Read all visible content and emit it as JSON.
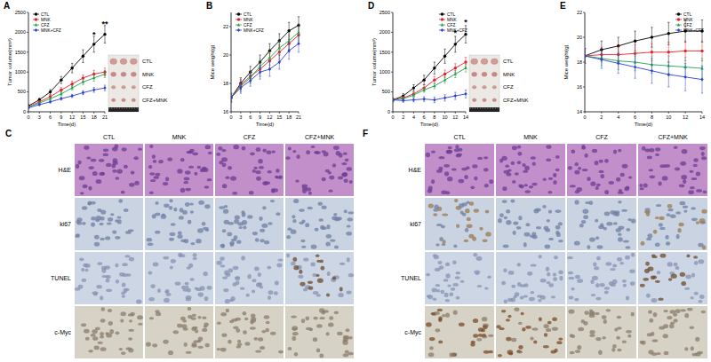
{
  "chart_data": [
    {
      "type": "line",
      "title": "A",
      "x": [
        0,
        3,
        6,
        9,
        12,
        15,
        18,
        21
      ],
      "xlim": [
        0,
        21
      ],
      "xticks": [
        0,
        3,
        6,
        9,
        12,
        15,
        18,
        21
      ],
      "ylim": [
        0,
        2500
      ],
      "yticks": [
        0,
        500,
        1000,
        1500,
        2000,
        2500
      ],
      "x_label": "Time(d)",
      "y_label": "Tumor volume(mm³)",
      "legend": "upper left",
      "series": [
        {
          "name": "CTL",
          "color": "#000000",
          "marker": "circle",
          "values": [
            150,
            300,
            500,
            800,
            1100,
            1400,
            1700,
            1950
          ],
          "errors": [
            20,
            40,
            60,
            90,
            120,
            160,
            200,
            220
          ]
        },
        {
          "name": "MNK",
          "color": "#e8202a",
          "marker": "circle",
          "values": [
            130,
            250,
            380,
            550,
            700,
            850,
            950,
            1000
          ],
          "errors": [
            15,
            30,
            40,
            60,
            70,
            80,
            90,
            100
          ]
        },
        {
          "name": "CFZ",
          "color": "#1fa34a",
          "marker": "triangle",
          "values": [
            120,
            220,
            330,
            450,
            600,
            750,
            850,
            950
          ],
          "errors": [
            15,
            25,
            35,
            50,
            60,
            70,
            80,
            90
          ]
        },
        {
          "name": "MNK+CFZ",
          "color": "#2b3fd6",
          "marker": "diamond",
          "values": [
            100,
            180,
            250,
            330,
            400,
            480,
            550,
            600
          ],
          "errors": [
            10,
            20,
            25,
            35,
            40,
            50,
            60,
            70
          ]
        }
      ],
      "annotations": [
        {
          "x": 18,
          "y": 1950,
          "text": "*"
        },
        {
          "x": 21,
          "y": 2220,
          "text": "**"
        }
      ]
    },
    {
      "type": "line",
      "title": "B",
      "x": [
        0,
        3,
        6,
        9,
        12,
        15,
        18,
        21
      ],
      "xlim": [
        0,
        21
      ],
      "xticks": [
        0,
        3,
        6,
        9,
        12,
        15,
        18,
        21
      ],
      "ylim": [
        16,
        23
      ],
      "yticks": [
        16,
        18,
        20,
        22
      ],
      "x_label": "Time(d)",
      "y_label": "Mice weight(g)",
      "legend": "upper left",
      "series": [
        {
          "name": "CTL",
          "color": "#000000",
          "marker": "circle",
          "values": [
            17,
            18,
            18.8,
            19.5,
            20.3,
            21,
            21.7,
            22.1
          ],
          "errors": [
            0.3,
            0.4,
            0.4,
            0.5,
            0.5,
            0.5,
            0.6,
            0.6
          ]
        },
        {
          "name": "MNK",
          "color": "#e8202a",
          "marker": "circle",
          "values": [
            17,
            17.9,
            18.5,
            19,
            19.6,
            20.2,
            20.8,
            21.4
          ],
          "errors": [
            0.3,
            0.4,
            0.4,
            0.5,
            0.5,
            0.5,
            0.6,
            0.6
          ]
        },
        {
          "name": "CFZ",
          "color": "#1fa34a",
          "marker": "triangle",
          "values": [
            17,
            17.8,
            18.4,
            19.2,
            19.8,
            20.5,
            21,
            21.6
          ],
          "errors": [
            0.3,
            0.4,
            0.4,
            0.5,
            0.5,
            0.5,
            0.6,
            0.6
          ]
        },
        {
          "name": "MNK+CFZ",
          "color": "#2b3fd6",
          "marker": "diamond",
          "values": [
            17,
            17.7,
            18.2,
            18.8,
            19,
            19.5,
            20.3,
            20.8
          ],
          "errors": [
            0.3,
            0.4,
            0.4,
            0.5,
            0.5,
            0.5,
            0.6,
            0.6
          ]
        }
      ]
    },
    {
      "type": "line",
      "title": "D",
      "x": [
        0,
        2,
        4,
        6,
        8,
        10,
        12,
        14
      ],
      "xlim": [
        0,
        14
      ],
      "xticks": [
        0,
        2,
        4,
        6,
        8,
        10,
        12,
        14
      ],
      "ylim": [
        0,
        2500
      ],
      "yticks": [
        0,
        500,
        1000,
        1500,
        2000,
        2500
      ],
      "x_label": "Time(d)",
      "y_label": "Tumor volume(mm³)",
      "legend": "upper right",
      "series": [
        {
          "name": "CTL",
          "color": "#000000",
          "marker": "circle",
          "values": [
            300,
            400,
            600,
            800,
            1100,
            1400,
            1700,
            1950
          ],
          "errors": [
            50,
            60,
            80,
            120,
            150,
            180,
            200,
            220
          ]
        },
        {
          "name": "MNK",
          "color": "#e8202a",
          "marker": "circle",
          "values": [
            300,
            350,
            450,
            600,
            800,
            950,
            1100,
            1250
          ],
          "errors": [
            40,
            50,
            60,
            80,
            90,
            100,
            110,
            120
          ]
        },
        {
          "name": "CFZ",
          "color": "#1fa34a",
          "marker": "triangle",
          "values": [
            300,
            330,
            420,
            550,
            650,
            800,
            950,
            1100
          ],
          "errors": [
            40,
            40,
            50,
            60,
            70,
            80,
            90,
            100
          ]
        },
        {
          "name": "MNK+CFZ",
          "color": "#2b3fd6",
          "marker": "diamond",
          "values": [
            300,
            280,
            300,
            320,
            300,
            350,
            400,
            450
          ],
          "errors": [
            40,
            40,
            50,
            60,
            70,
            80,
            90,
            100
          ]
        }
      ],
      "annotations": [
        {
          "x": 12,
          "y": 1980,
          "text": "*"
        },
        {
          "x": 14,
          "y": 2250,
          "text": "*"
        }
      ]
    },
    {
      "type": "line",
      "title": "E",
      "x": [
        0,
        2,
        4,
        6,
        8,
        10,
        12,
        14
      ],
      "xlim": [
        0,
        14
      ],
      "xticks": [
        0,
        2,
        4,
        6,
        8,
        10,
        12,
        14
      ],
      "ylim": [
        14,
        22
      ],
      "yticks": [
        14,
        16,
        18,
        20,
        22
      ],
      "x_label": "Time(d)",
      "y_label": "Mice weight(g)",
      "legend": "upper right",
      "series": [
        {
          "name": "CTL",
          "color": "#000000",
          "marker": "circle",
          "values": [
            18.5,
            19,
            19.3,
            19.7,
            20,
            20.3,
            20.5,
            20.5
          ],
          "errors": [
            0.6,
            0.7,
            0.7,
            0.8,
            0.8,
            0.9,
            0.9,
            0.9
          ]
        },
        {
          "name": "MNK",
          "color": "#e8202a",
          "marker": "circle",
          "values": [
            18.5,
            18.6,
            18.6,
            18.7,
            18.8,
            18.8,
            18.9,
            18.9
          ],
          "errors": [
            0.6,
            0.6,
            0.7,
            0.7,
            0.7,
            0.8,
            0.8,
            0.8
          ]
        },
        {
          "name": "CFZ",
          "color": "#1fa34a",
          "marker": "triangle",
          "values": [
            18.5,
            18.3,
            18.1,
            18,
            17.8,
            17.7,
            17.6,
            17.5
          ],
          "errors": [
            0.6,
            0.6,
            0.7,
            0.7,
            0.7,
            0.8,
            0.8,
            0.8
          ]
        },
        {
          "name": "MNK+CFZ",
          "color": "#2b3fd6",
          "marker": "diamond",
          "values": [
            18.5,
            18.2,
            17.9,
            17.6,
            17.3,
            17,
            16.8,
            16.6
          ],
          "errors": [
            0.6,
            0.7,
            0.8,
            0.9,
            1,
            1,
            1.1,
            1.1
          ]
        }
      ]
    }
  ],
  "tumor_photos": [
    {
      "labels": [
        "CTL",
        "MNK",
        "CFZ",
        "CFZ+MNK"
      ]
    },
    {
      "labels": [
        "CTL",
        "MNK",
        "CFZ",
        "CFZ+MNK"
      ]
    }
  ],
  "histology": [
    {
      "title": "C",
      "columns": [
        "CTL",
        "MNK",
        "CFZ",
        "CFZ+MNK"
      ],
      "rows": [
        "H&E",
        "ki67",
        "TUNEL",
        "c-Myc"
      ]
    },
    {
      "title": "F",
      "columns": [
        "CTL",
        "MNK",
        "CFZ",
        "CFZ+MNK"
      ],
      "rows": [
        "H&E",
        "ki67",
        "TUNEL",
        "c-Myc"
      ]
    }
  ]
}
